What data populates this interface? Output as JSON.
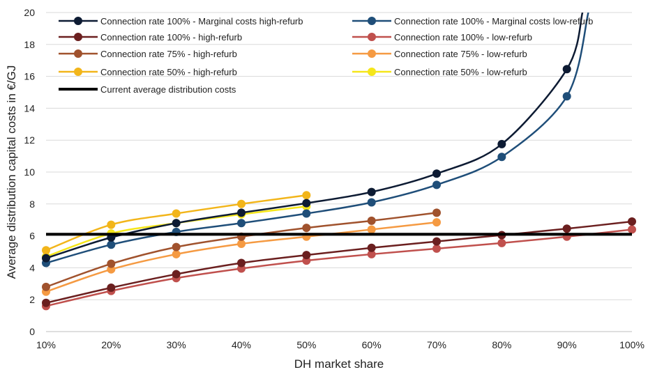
{
  "chart_data": {
    "type": "line",
    "title": "",
    "xlabel": "DH market share",
    "ylabel": "Average distribution capital costs in €/GJ",
    "categories": [
      "10%",
      "20%",
      "30%",
      "40%",
      "50%",
      "60%",
      "70%",
      "80%",
      "90%",
      "100%"
    ],
    "x": [
      10,
      20,
      30,
      40,
      50,
      60,
      70,
      80,
      90,
      100
    ],
    "xlim": [
      10,
      100
    ],
    "ylim": [
      0,
      20
    ],
    "yticks": [
      "0",
      "2",
      "4",
      "6",
      "8",
      "10",
      "12",
      "14",
      "16",
      "18",
      "20"
    ],
    "grid": true,
    "legend_position": "top",
    "series": [
      {
        "name": "Connection rate 100% - Marginal costs high-refurb",
        "color": "#0d1b33",
        "x": [
          10,
          20,
          30,
          40,
          50,
          60,
          70,
          80,
          90
        ],
        "values": [
          4.6,
          5.9,
          6.8,
          7.45,
          8.05,
          8.75,
          9.9,
          11.75,
          16.45
        ],
        "continues_to": [
          92.4,
          20
        ]
      },
      {
        "name": "Connection rate 100% - Marginal costs low-refurb",
        "color": "#1f4e79",
        "x": [
          10,
          20,
          30,
          40,
          50,
          60,
          70,
          80,
          90
        ],
        "values": [
          4.3,
          5.45,
          6.25,
          6.8,
          7.4,
          8.1,
          9.2,
          10.95,
          14.75
        ],
        "continues_to": [
          93.3,
          20
        ]
      },
      {
        "name": "Connection rate 100% - high-refurb",
        "color": "#6b1f1f",
        "x": [
          10,
          20,
          30,
          40,
          50,
          60,
          70,
          80,
          90,
          100
        ],
        "values": [
          1.8,
          2.75,
          3.6,
          4.3,
          4.8,
          5.25,
          5.65,
          6.05,
          6.45,
          6.9
        ]
      },
      {
        "name": "Connection rate 100% - low-refurb",
        "color": "#c0504d",
        "x": [
          10,
          20,
          30,
          40,
          50,
          60,
          70,
          80,
          90,
          100
        ],
        "values": [
          1.6,
          2.55,
          3.35,
          3.95,
          4.45,
          4.85,
          5.2,
          5.55,
          5.95,
          6.4
        ]
      },
      {
        "name": "Connection rate 75% - high-refurb",
        "color": "#a0522d",
        "x": [
          10,
          20,
          30,
          40,
          50,
          60,
          70
        ],
        "values": [
          2.8,
          4.25,
          5.3,
          5.95,
          6.5,
          6.95,
          7.45
        ]
      },
      {
        "name": "Connection rate 75% - low-refurb",
        "color": "#f59a42",
        "x": [
          10,
          20,
          30,
          40,
          50,
          60,
          70
        ],
        "values": [
          2.5,
          3.9,
          4.85,
          5.5,
          5.95,
          6.4,
          6.85
        ]
      },
      {
        "name": "Connection rate 50% - high-refurb",
        "color": "#f2b51a",
        "x": [
          10,
          20,
          30,
          40,
          50
        ],
        "values": [
          5.1,
          6.7,
          7.4,
          8.0,
          8.55
        ]
      },
      {
        "name": "Connection rate 50% - low-refurb",
        "color": "#f5e61a",
        "x": [
          10,
          20,
          30,
          40,
          50
        ],
        "values": [
          4.7,
          6.15,
          6.8,
          7.35,
          7.85
        ]
      },
      {
        "name": "Current average distribution costs",
        "color": "#000000",
        "x": [
          10,
          100
        ],
        "values": [
          6.1,
          6.1
        ],
        "markers": false
      }
    ]
  }
}
